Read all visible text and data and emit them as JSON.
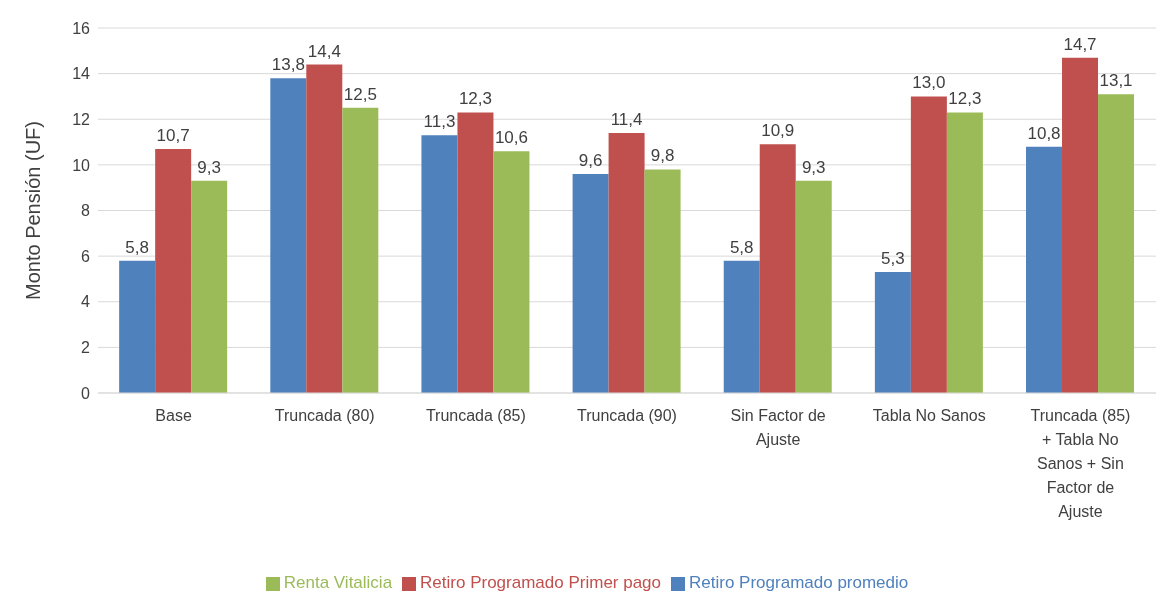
{
  "chart_data": {
    "type": "bar",
    "ylabel": "Monto Pensión (UF)",
    "categories": [
      "Base",
      "Truncada (80)",
      "Truncada (85)",
      "Truncada (90)",
      "Sin Factor de Ajuste",
      "Tabla No Sanos",
      "Truncada (85) + Tabla No Sanos + Sin Factor de Ajuste"
    ],
    "series": [
      {
        "name": "Retiro Programado promedio",
        "color": "#4f81bd",
        "values": [
          5.8,
          13.8,
          11.3,
          9.6,
          5.8,
          5.3,
          10.8
        ],
        "value_labels": [
          "5,8",
          "13,8",
          "11,3",
          "9,6",
          "5,8",
          "5,3",
          "10,8"
        ]
      },
      {
        "name": "Retiro Programado Primer pago",
        "color": "#c0504d",
        "values": [
          10.7,
          14.4,
          12.3,
          11.4,
          10.9,
          13.0,
          14.7
        ],
        "value_labels": [
          "10,7",
          "14,4",
          "12,3",
          "11,4",
          "10,9",
          "13,0",
          "14,7"
        ]
      },
      {
        "name": "Renta Vitalicia",
        "color": "#9bbb59",
        "values": [
          9.3,
          12.5,
          10.6,
          9.8,
          9.3,
          12.3,
          13.1
        ],
        "value_labels": [
          "9,3",
          "12,5",
          "10,6",
          "9,8",
          "9,3",
          "12,3",
          "13,1"
        ]
      }
    ],
    "ylim": [
      0,
      16
    ],
    "yticks": [
      0,
      2,
      4,
      6,
      8,
      10,
      12,
      14,
      16
    ],
    "grid": "y",
    "legend": "bottom"
  }
}
